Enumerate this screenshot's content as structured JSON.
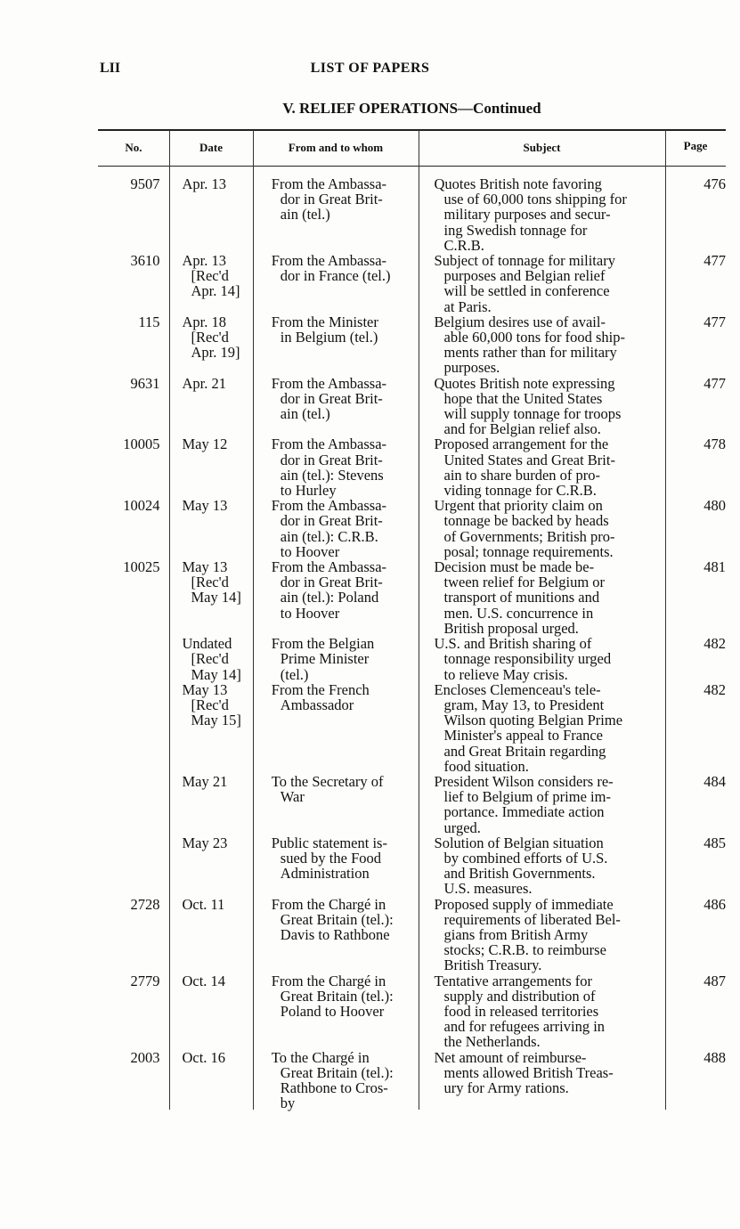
{
  "folio": "LII",
  "running_head": "LIST OF PAPERS",
  "section": "V. RELIEF OPERATIONS—Continued",
  "headers": {
    "no": "No.",
    "date": "Date",
    "from": "From and to whom",
    "subject": "Subject",
    "page": "Page"
  },
  "rows": [
    {
      "no": "9507",
      "date": "Apr. 13",
      "from": "From the Ambassa-\ndor in Great Brit-\nain (tel.)",
      "subject": "Quotes British note favoring\nuse of 60,000 tons shipping for\nmilitary purposes and secur-\ning Swedish tonnage for\nC.R.B.",
      "page": "476"
    },
    {
      "no": "3610",
      "date": "Apr. 13\n[Rec'd\nApr. 14]",
      "from": "From the Ambassa-\ndor in France (tel.)",
      "subject": "Subject of tonnage for military\npurposes and Belgian relief\nwill be settled in conference\nat Paris.",
      "page": "477"
    },
    {
      "no": "115",
      "date": "Apr. 18\n[Rec'd\nApr. 19]",
      "from": "From the Minister\nin Belgium (tel.)",
      "subject": "Belgium desires use of avail-\nable 60,000 tons for food ship-\nments rather than for military\npurposes.",
      "page": "477"
    },
    {
      "no": "9631",
      "date": "Apr. 21",
      "from": "From the Ambassa-\ndor in Great Brit-\nain (tel.)",
      "subject": "Quotes British note expressing\nhope that the United States\nwill supply tonnage for troops\nand for Belgian relief also.",
      "page": "477"
    },
    {
      "no": "10005",
      "date": "May 12",
      "from": "From the Ambassa-\ndor in Great Brit-\nain (tel.): Stevens\nto Hurley",
      "subject": "Proposed arrangement for the\nUnited States and Great Brit-\nain to share burden of pro-\nviding tonnage for C.R.B.",
      "page": "478"
    },
    {
      "no": "10024",
      "date": "May 13",
      "from": "From the Ambassa-\ndor in Great Brit-\nain (tel.): C.R.B.\nto Hoover",
      "subject": "Urgent that priority claim on\ntonnage be backed by heads\nof Governments; British pro-\nposal; tonnage requirements.",
      "page": "480"
    },
    {
      "no": "10025",
      "date": "May 13\n[Rec'd\nMay 14]",
      "from": "From the Ambassa-\ndor in Great Brit-\nain (tel.): Poland\nto Hoover",
      "subject": "Decision must be made be-\ntween relief for Belgium or\ntransport of munitions and\nmen. U.S. concurrence in\nBritish proposal urged.",
      "page": "481"
    },
    {
      "no": "",
      "date": "Undated\n[Rec'd\nMay 14]",
      "from": "From the Belgian\nPrime Minister\n(tel.)",
      "subject": "U.S. and British sharing of\ntonnage responsibility urged\nto relieve May crisis.",
      "page": "482"
    },
    {
      "no": "",
      "date": "May 13\n[Rec'd\nMay 15]",
      "from": "From the French\nAmbassador",
      "subject": "Encloses Clemenceau's tele-\ngram, May 13, to President\nWilson quoting Belgian Prime\nMinister's appeal to France\nand Great Britain regarding\nfood situation.",
      "page": "482"
    },
    {
      "no": "",
      "date": "May 21",
      "from": "To the Secretary of\nWar",
      "subject": "President Wilson considers re-\nlief to Belgium of prime im-\nportance. Immediate action\nurged.",
      "page": "484"
    },
    {
      "no": "",
      "date": "May 23",
      "from": "Public statement is-\nsued by the Food\nAdministration",
      "subject": "Solution of Belgian situation\nby combined efforts of U.S.\nand British Governments.\nU.S. measures.",
      "page": "485"
    },
    {
      "no": "2728",
      "date": "Oct. 11",
      "from": "From the Chargé in\nGreat Britain (tel.):\nDavis to Rathbone",
      "subject": "Proposed supply of immediate\nrequirements of liberated Bel-\ngians from British Army\nstocks; C.R.B. to reimburse\nBritish Treasury.",
      "page": "486"
    },
    {
      "no": "2779",
      "date": "Oct. 14",
      "from": "From the Chargé in\nGreat Britain (tel.):\nPoland to Hoover",
      "subject": "Tentative arrangements for\nsupply and distribution of\nfood in released territories\nand for refugees arriving in\nthe Netherlands.",
      "page": "487"
    },
    {
      "no": "2003",
      "date": "Oct. 16",
      "from": "To the Chargé in\nGreat Britain (tel.):\nRathbone to Cros-\nby",
      "subject": "Net amount of reimburse-\nments allowed British Treas-\nury for Army rations.",
      "page": "488"
    }
  ]
}
